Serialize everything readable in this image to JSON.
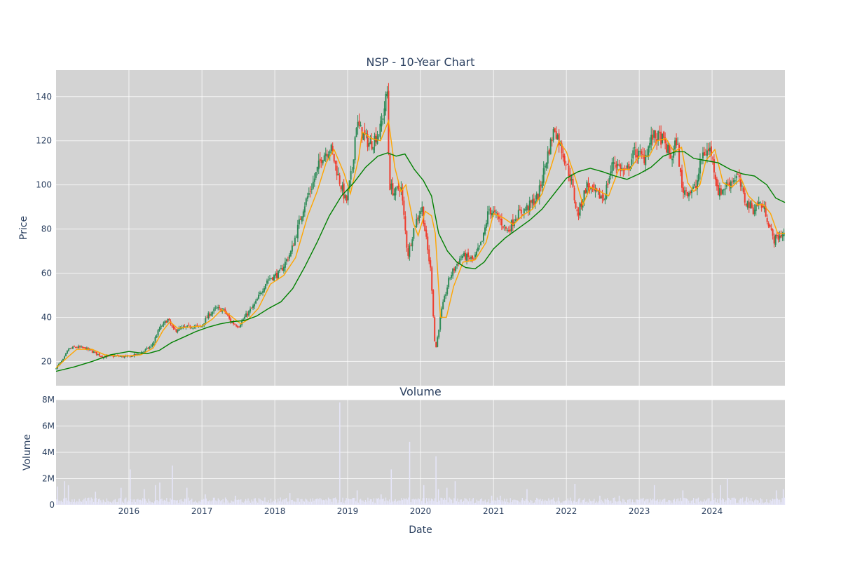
{
  "chart_data": [
    {
      "type": "candlestick",
      "title": "NSP - 10-Year Chart",
      "ylabel": "Price",
      "xlabel": "",
      "x_range": [
        "2015-01-01",
        "2024-12-31"
      ],
      "ylim": [
        9,
        152
      ],
      "y_ticks": [
        20,
        40,
        60,
        80,
        100,
        120,
        140
      ],
      "grid": true,
      "background": "#d3d3d3",
      "up_color": "#2e8b57",
      "down_color": "#ef3b2c",
      "price_path": [
        [
          "2015-01-01",
          16.5
        ],
        [
          "2015-02-15",
          21
        ],
        [
          "2015-03-10",
          25.5
        ],
        [
          "2015-04-15",
          26.5
        ],
        [
          "2015-06-01",
          26
        ],
        [
          "2015-07-20",
          24
        ],
        [
          "2015-09-01",
          22
        ],
        [
          "2015-11-01",
          22.5
        ],
        [
          "2016-01-01",
          22
        ],
        [
          "2016-03-01",
          23.5
        ],
        [
          "2016-05-01",
          27
        ],
        [
          "2016-06-10",
          35
        ],
        [
          "2016-07-20",
          39
        ],
        [
          "2016-08-20",
          34
        ],
        [
          "2016-10-01",
          35
        ],
        [
          "2016-11-20",
          36
        ],
        [
          "2017-01-01",
          35.5
        ],
        [
          "2017-02-10",
          41
        ],
        [
          "2017-03-20",
          44
        ],
        [
          "2017-05-01",
          43
        ],
        [
          "2017-06-01",
          38
        ],
        [
          "2017-07-10",
          36
        ],
        [
          "2017-08-10",
          40
        ],
        [
          "2017-10-01",
          46
        ],
        [
          "2017-12-01",
          57
        ],
        [
          "2018-02-01",
          60
        ],
        [
          "2018-04-01",
          70
        ],
        [
          "2018-06-01",
          90
        ],
        [
          "2018-07-15",
          100
        ],
        [
          "2018-09-01",
          113
        ],
        [
          "2018-10-15",
          117
        ],
        [
          "2018-12-01",
          101
        ],
        [
          "2019-01-01",
          92
        ],
        [
          "2019-02-01",
          108
        ],
        [
          "2019-02-20",
          128
        ],
        [
          "2019-04-01",
          122
        ],
        [
          "2019-05-01",
          118
        ],
        [
          "2019-06-20",
          125
        ],
        [
          "2019-07-25",
          142
        ],
        [
          "2019-08-05",
          100
        ],
        [
          "2019-09-01",
          96
        ],
        [
          "2019-10-01",
          100
        ],
        [
          "2019-11-05",
          68
        ],
        [
          "2019-12-10",
          82
        ],
        [
          "2020-01-15",
          90
        ],
        [
          "2020-02-10",
          72
        ],
        [
          "2020-03-01",
          60
        ],
        [
          "2020-03-22",
          24
        ],
        [
          "2020-04-20",
          42
        ],
        [
          "2020-06-01",
          58
        ],
        [
          "2020-08-01",
          68
        ],
        [
          "2020-10-01",
          66
        ],
        [
          "2020-11-15",
          75
        ],
        [
          "2020-12-15",
          89
        ],
        [
          "2021-02-01",
          85
        ],
        [
          "2021-03-20",
          79
        ],
        [
          "2021-05-01",
          86
        ],
        [
          "2021-07-01",
          90
        ],
        [
          "2021-08-20",
          95
        ],
        [
          "2021-10-01",
          112
        ],
        [
          "2021-11-10",
          126
        ],
        [
          "2021-12-20",
          115
        ],
        [
          "2022-02-01",
          102
        ],
        [
          "2022-03-05",
          86
        ],
        [
          "2022-04-20",
          100
        ],
        [
          "2022-06-01",
          96
        ],
        [
          "2022-07-15",
          94
        ],
        [
          "2022-09-01",
          111
        ],
        [
          "2022-11-01",
          105
        ],
        [
          "2022-12-15",
          115
        ],
        [
          "2023-02-01",
          112
        ],
        [
          "2023-03-15",
          122
        ],
        [
          "2023-05-01",
          121
        ],
        [
          "2023-06-20",
          112
        ],
        [
          "2023-07-15",
          121
        ],
        [
          "2023-08-10",
          98
        ],
        [
          "2023-09-15",
          97
        ],
        [
          "2023-10-20",
          99
        ],
        [
          "2023-11-20",
          114
        ],
        [
          "2024-01-01",
          116
        ],
        [
          "2024-02-10",
          96
        ],
        [
          "2024-04-01",
          101
        ],
        [
          "2024-05-15",
          104
        ],
        [
          "2024-06-20",
          93
        ],
        [
          "2024-08-01",
          89
        ],
        [
          "2024-09-01",
          92
        ],
        [
          "2024-10-01",
          88
        ],
        [
          "2024-11-10",
          75
        ],
        [
          "2024-12-31",
          78
        ]
      ],
      "series": [
        {
          "color": "#ffa500",
          "values": [
            [
              "2015-01-01",
              17
            ],
            [
              "2015-03-01",
              22
            ],
            [
              "2015-04-15",
              25.5
            ],
            [
              "2015-07-01",
              25.5
            ],
            [
              "2015-09-01",
              23
            ],
            [
              "2015-11-01",
              22.5
            ],
            [
              "2016-01-01",
              22.5
            ],
            [
              "2016-03-01",
              23
            ],
            [
              "2016-05-01",
              26
            ],
            [
              "2016-06-20",
              34
            ],
            [
              "2016-07-25",
              38
            ],
            [
              "2016-09-01",
              35
            ],
            [
              "2016-10-20",
              35.5
            ],
            [
              "2017-01-01",
              36
            ],
            [
              "2017-02-20",
              39
            ],
            [
              "2017-04-10",
              43.5
            ],
            [
              "2017-05-20",
              41
            ],
            [
              "2017-07-15",
              37
            ],
            [
              "2017-08-20",
              39
            ],
            [
              "2017-10-10",
              44
            ],
            [
              "2017-12-10",
              55
            ],
            [
              "2018-02-15",
              59
            ],
            [
              "2018-04-15",
              67
            ],
            [
              "2018-06-15",
              86
            ],
            [
              "2018-08-01",
              97
            ],
            [
              "2018-09-15",
              110
            ],
            [
              "2018-10-25",
              116
            ],
            [
              "2018-12-15",
              105
            ],
            [
              "2019-01-15",
              96
            ],
            [
              "2019-02-25",
              112
            ],
            [
              "2019-03-15",
              124
            ],
            [
              "2019-05-01",
              121
            ],
            [
              "2019-06-15",
              120
            ],
            [
              "2019-07-25",
              129
            ],
            [
              "2019-08-25",
              108
            ],
            [
              "2019-09-25",
              97
            ],
            [
              "2019-10-20",
              100
            ],
            [
              "2019-11-25",
              83
            ],
            [
              "2019-12-20",
              77
            ],
            [
              "2020-01-25",
              88
            ],
            [
              "2020-02-25",
              86
            ],
            [
              "2020-03-15",
              78
            ],
            [
              "2020-04-10",
              40
            ],
            [
              "2020-05-10",
              40
            ],
            [
              "2020-06-15",
              54
            ],
            [
              "2020-08-01",
              65
            ],
            [
              "2020-10-01",
              66
            ],
            [
              "2020-11-25",
              74
            ],
            [
              "2021-01-01",
              87
            ],
            [
              "2021-02-20",
              85
            ],
            [
              "2021-04-10",
              82
            ],
            [
              "2021-05-25",
              86
            ],
            [
              "2021-07-15",
              89
            ],
            [
              "2021-09-01",
              96
            ],
            [
              "2021-10-15",
              108
            ],
            [
              "2021-11-25",
              120
            ],
            [
              "2022-01-01",
              115
            ],
            [
              "2022-02-15",
              103
            ],
            [
              "2022-03-25",
              91
            ],
            [
              "2022-05-01",
              99
            ],
            [
              "2022-06-20",
              97
            ],
            [
              "2022-08-01",
              95
            ],
            [
              "2022-09-20",
              107
            ],
            [
              "2022-11-15",
              107
            ],
            [
              "2023-01-01",
              113
            ],
            [
              "2023-02-20",
              113
            ],
            [
              "2023-04-01",
              120
            ],
            [
              "2023-05-15",
              121
            ],
            [
              "2023-06-25",
              115
            ],
            [
              "2023-08-01",
              117
            ],
            [
              "2023-09-01",
              101
            ],
            [
              "2023-10-01",
              97
            ],
            [
              "2023-11-01",
              100
            ],
            [
              "2023-12-01",
              111
            ],
            [
              "2024-01-15",
              116
            ],
            [
              "2024-02-25",
              101
            ],
            [
              "2024-04-10",
              99
            ],
            [
              "2024-05-25",
              103
            ],
            [
              "2024-07-01",
              95
            ],
            [
              "2024-08-15",
              91
            ],
            [
              "2024-09-15",
              91
            ],
            [
              "2024-10-20",
              87
            ],
            [
              "2024-11-25",
              78
            ],
            [
              "2024-12-31",
              78
            ]
          ]
        },
        {
          "color": "#008000",
          "values": [
            [
              "2015-01-01",
              15.5
            ],
            [
              "2015-04-01",
              17.5
            ],
            [
              "2015-07-01",
              20
            ],
            [
              "2015-10-01",
              23
            ],
            [
              "2016-01-01",
              24.5
            ],
            [
              "2016-04-01",
              23.5
            ],
            [
              "2016-06-01",
              25
            ],
            [
              "2016-08-01",
              28.5
            ],
            [
              "2016-10-01",
              31
            ],
            [
              "2016-12-01",
              33.5
            ],
            [
              "2017-02-01",
              35.5
            ],
            [
              "2017-04-01",
              37
            ],
            [
              "2017-06-01",
              38
            ],
            [
              "2017-08-01",
              38.5
            ],
            [
              "2017-10-01",
              40.5
            ],
            [
              "2017-12-01",
              44
            ],
            [
              "2018-02-01",
              47
            ],
            [
              "2018-04-01",
              53
            ],
            [
              "2018-06-01",
              63
            ],
            [
              "2018-08-01",
              74
            ],
            [
              "2018-10-01",
              86
            ],
            [
              "2018-12-01",
              95
            ],
            [
              "2019-02-01",
              101
            ],
            [
              "2019-04-01",
              108
            ],
            [
              "2019-06-01",
              113
            ],
            [
              "2019-07-20",
              114.5
            ],
            [
              "2019-09-01",
              113
            ],
            [
              "2019-10-15",
              114
            ],
            [
              "2019-12-01",
              107
            ],
            [
              "2020-01-15",
              102
            ],
            [
              "2020-02-25",
              95
            ],
            [
              "2020-04-01",
              78
            ],
            [
              "2020-05-15",
              70
            ],
            [
              "2020-07-01",
              65
            ],
            [
              "2020-08-15",
              62.5
            ],
            [
              "2020-10-01",
              62
            ],
            [
              "2020-11-15",
              65
            ],
            [
              "2021-01-01",
              71
            ],
            [
              "2021-03-01",
              76
            ],
            [
              "2021-05-01",
              80
            ],
            [
              "2021-07-01",
              84
            ],
            [
              "2021-09-01",
              89
            ],
            [
              "2021-11-01",
              96
            ],
            [
              "2022-01-01",
              103
            ],
            [
              "2022-03-01",
              106
            ],
            [
              "2022-05-01",
              107.5
            ],
            [
              "2022-07-01",
              106
            ],
            [
              "2022-09-01",
              104
            ],
            [
              "2022-11-01",
              102.5
            ],
            [
              "2023-01-01",
              105
            ],
            [
              "2023-03-01",
              108
            ],
            [
              "2023-05-01",
              113
            ],
            [
              "2023-07-01",
              115
            ],
            [
              "2023-08-15",
              115
            ],
            [
              "2023-10-01",
              112
            ],
            [
              "2023-12-01",
              111
            ],
            [
              "2024-02-01",
              110
            ],
            [
              "2024-04-01",
              107
            ],
            [
              "2024-06-01",
              105
            ],
            [
              "2024-08-01",
              104
            ],
            [
              "2024-10-01",
              100
            ],
            [
              "2024-11-15",
              94
            ],
            [
              "2024-12-31",
              92
            ]
          ]
        }
      ]
    },
    {
      "type": "bar",
      "title": "Volume",
      "ylabel": "Volume",
      "xlabel": "Date",
      "x_range": [
        "2015-01-01",
        "2024-12-31"
      ],
      "ylim": [
        0,
        8000000
      ],
      "y_ticks": [
        0,
        2000000,
        4000000,
        6000000,
        8000000
      ],
      "y_tick_labels": [
        "0",
        "2M",
        "4M",
        "6M",
        "8M"
      ],
      "x_tick_labels": [
        "2016",
        "2017",
        "2018",
        "2019",
        "2020",
        "2021",
        "2022",
        "2023",
        "2024"
      ],
      "bar_color": "#e6e6fa",
      "base_volume": 450000,
      "spikes": [
        [
          "2015-01-05",
          1400000
        ],
        [
          "2015-02-10",
          1800000
        ],
        [
          "2015-03-01",
          1500000
        ],
        [
          "2015-07-15",
          1000000
        ],
        [
          "2015-11-20",
          1300000
        ],
        [
          "2016-01-05",
          2700000
        ],
        [
          "2016-03-15",
          1200000
        ],
        [
          "2016-05-10",
          1500000
        ],
        [
          "2016-06-01",
          1700000
        ],
        [
          "2016-08-03",
          3000000
        ],
        [
          "2016-10-15",
          1300000
        ],
        [
          "2017-01-15",
          800000
        ],
        [
          "2017-06-15",
          700000
        ],
        [
          "2018-03-15",
          900000
        ],
        [
          "2018-11-20",
          7800000
        ],
        [
          "2019-02-15",
          1100000
        ],
        [
          "2019-06-15",
          800000
        ],
        [
          "2019-08-05",
          2700000
        ],
        [
          "2019-11-05",
          4800000
        ],
        [
          "2020-01-15",
          1500000
        ],
        [
          "2020-03-16",
          3700000
        ],
        [
          "2020-03-28",
          1200000
        ],
        [
          "2020-05-10",
          1300000
        ],
        [
          "2020-06-20",
          1800000
        ],
        [
          "2020-12-20",
          700000
        ],
        [
          "2021-02-01",
          700000
        ],
        [
          "2021-06-15",
          1200000
        ],
        [
          "2022-02-10",
          1600000
        ],
        [
          "2022-06-15",
          700000
        ],
        [
          "2022-09-20",
          700000
        ],
        [
          "2023-03-15",
          1500000
        ],
        [
          "2023-08-05",
          1100000
        ],
        [
          "2024-01-01",
          900000
        ],
        [
          "2024-02-10",
          1500000
        ],
        [
          "2024-03-15",
          2000000
        ],
        [
          "2024-06-20",
          600000
        ],
        [
          "2024-11-15",
          1100000
        ],
        [
          "2024-12-20",
          1200000
        ]
      ]
    }
  ]
}
